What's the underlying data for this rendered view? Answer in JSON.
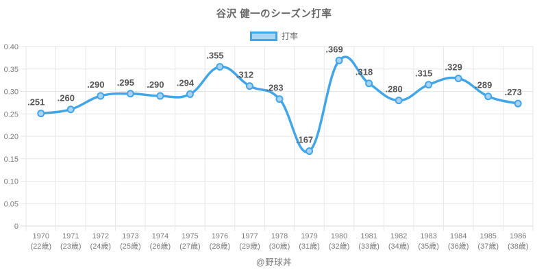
{
  "title": "谷沢 健一のシーズン打率",
  "legend": {
    "label": "打率"
  },
  "footer": "@野球丼",
  "colors": {
    "line": "#42a5e8",
    "point_fill": "#a9d3f2",
    "grid": "#e6e6e6",
    "axis_line": "#d9d9d9",
    "tick_text": "#7b7b7b",
    "point_label_text": "#555555",
    "title_text": "#666666",
    "footer_text": "#7a7a7a"
  },
  "chart_data": {
    "type": "line",
    "title": "谷沢 健一のシーズン打率",
    "categories": [
      [
        "1970",
        "(22歳)"
      ],
      [
        "1971",
        "(23歳)"
      ],
      [
        "1972",
        "(24歳)"
      ],
      [
        "1973",
        "(25歳)"
      ],
      [
        "1974",
        "(26歳)"
      ],
      [
        "1975",
        "(27歳)"
      ],
      [
        "1976",
        "(28歳)"
      ],
      [
        "1977",
        "(29歳)"
      ],
      [
        "1978",
        "(30歳)"
      ],
      [
        "1979",
        "(31歳)"
      ],
      [
        "1980",
        "(32歳)"
      ],
      [
        "1981",
        "(33歳)"
      ],
      [
        "1982",
        "(34歳)"
      ],
      [
        "1983",
        "(35歳)"
      ],
      [
        "1984",
        "(36歳)"
      ],
      [
        "1985",
        "(37歳)"
      ],
      [
        "1986",
        "(38歳)"
      ]
    ],
    "series": [
      {
        "name": "打率",
        "values": [
          0.251,
          0.26,
          0.29,
          0.295,
          0.29,
          0.294,
          0.355,
          0.312,
          0.283,
          0.167,
          0.369,
          0.318,
          0.28,
          0.315,
          0.329,
          0.289,
          0.273
        ]
      }
    ],
    "point_labels": [
      ".251",
      ".260",
      ".290",
      ".295",
      ".290",
      ".294",
      ".355",
      ".312",
      ".283",
      ".167",
      ".369",
      ".318",
      ".280",
      ".315",
      ".329",
      ".289",
      ".273"
    ],
    "ylabel": "",
    "xlabel": "",
    "ylim": [
      0,
      0.4
    ],
    "ytick_step": 0.05,
    "ytick_labels": [
      "0",
      "0.05",
      "0.10",
      "0.15",
      "0.20",
      "0.25",
      "0.30",
      "0.35",
      "0.40"
    ],
    "grid": true,
    "legend_position": "top"
  }
}
